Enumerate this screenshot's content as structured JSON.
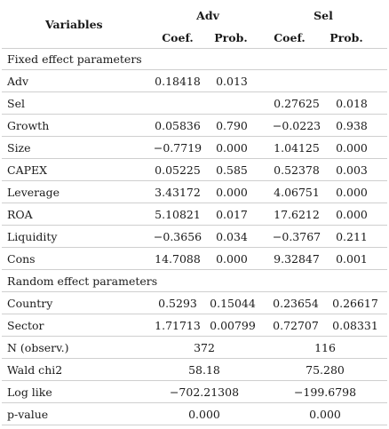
{
  "header": {
    "variables_label": "Variables",
    "group_adv": "Adv",
    "group_sel": "Sel",
    "coef_label": "Coef.",
    "prob_label": "Prob."
  },
  "sections": {
    "fixed_label": "Fixed effect parameters",
    "random_label": "Random effect parameters"
  },
  "fixed_rows": [
    {
      "name": "Adv",
      "adv_coef": "0.18418",
      "adv_prob": "0.013",
      "sel_coef": "",
      "sel_prob": ""
    },
    {
      "name": "Sel",
      "adv_coef": "",
      "adv_prob": "",
      "sel_coef": "0.27625",
      "sel_prob": "0.018"
    },
    {
      "name": "Growth",
      "adv_coef": "0.05836",
      "adv_prob": "0.790",
      "sel_coef": "−0.0223",
      "sel_prob": "0.938"
    },
    {
      "name": "Size",
      "adv_coef": "−0.7719",
      "adv_prob": "0.000",
      "sel_coef": "1.04125",
      "sel_prob": "0.000"
    },
    {
      "name": "CAPEX",
      "adv_coef": "0.05225",
      "adv_prob": "0.585",
      "sel_coef": "0.52378",
      "sel_prob": "0.003"
    },
    {
      "name": "Leverage",
      "adv_coef": "3.43172",
      "adv_prob": "0.000",
      "sel_coef": "4.06751",
      "sel_prob": "0.000"
    },
    {
      "name": "ROA",
      "adv_coef": "5.10821",
      "adv_prob": "0.017",
      "sel_coef": "17.6212",
      "sel_prob": "0.000"
    },
    {
      "name": "Liquidity",
      "adv_coef": "−0.3656",
      "adv_prob": "0.034",
      "sel_coef": "−0.3767",
      "sel_prob": "0.211"
    },
    {
      "name": "Cons",
      "adv_coef": "14.7088",
      "adv_prob": "0.000",
      "sel_coef": "9.32847",
      "sel_prob": "0.001"
    }
  ],
  "random_rows": [
    {
      "name": "Country",
      "adv_coef": "0.5293",
      "adv_prob": "0.15044",
      "sel_coef": "0.23654",
      "sel_prob": "0.26617"
    },
    {
      "name": "Sector",
      "adv_coef": "1.71713",
      "adv_prob": "0.00799",
      "sel_coef": "0.72707",
      "sel_prob": "0.08331"
    }
  ],
  "summary_rows": [
    {
      "name": "N (observ.)",
      "adv": "372",
      "sel": "116"
    },
    {
      "name": "Wald chi2",
      "adv": "58.18",
      "sel": "75.280"
    },
    {
      "name": "Log like",
      "adv": "−702.21308",
      "sel": "−199.6798"
    },
    {
      "name": "p-value",
      "adv": "0.000",
      "sel": "0.000"
    }
  ]
}
